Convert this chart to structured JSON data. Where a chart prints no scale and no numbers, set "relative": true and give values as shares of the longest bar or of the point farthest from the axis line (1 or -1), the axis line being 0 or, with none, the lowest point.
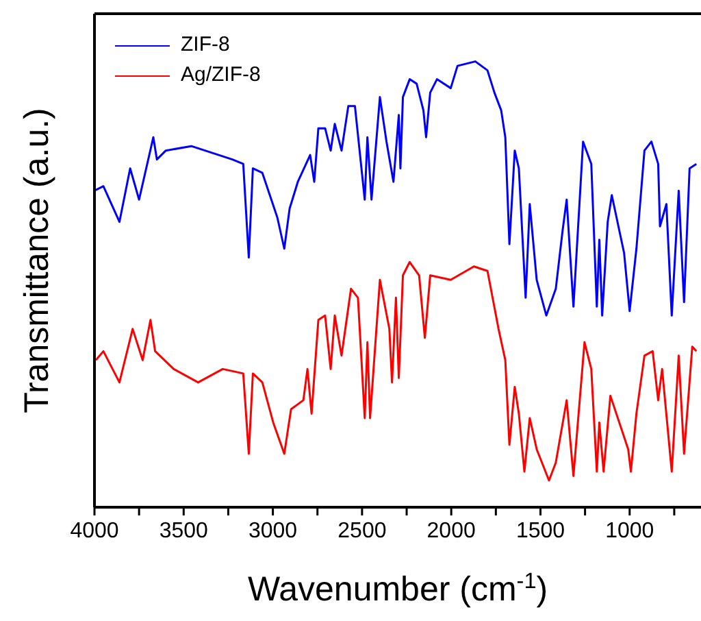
{
  "chart_data": {
    "type": "line",
    "xlabel": "Wavenumber (cm$^{-1}$)",
    "ylabel": "Transmittance (a.u.)",
    "relative": true,
    "xlim": [
      4000,
      600
    ],
    "xticks": [
      4000,
      {
        "value": 3750,
        "label": null
      },
      3500,
      {
        "value": 3250,
        "label": null
      },
      3000,
      {
        "value": 2750,
        "label": null
      },
      2500,
      {
        "value": 2250,
        "label": null
      },
      2000,
      {
        "value": 1750,
        "label": null
      },
      1500,
      {
        "value": 1250,
        "label": null
      },
      1000,
      {
        "value": 750,
        "label": null
      }
    ],
    "legend": "top left",
    "grid": false,
    "marker": "none",
    "line_style": "solid",
    "series": [
      {
        "name": "ZIF-8",
        "color": "#0000ff",
        "x": [
          4000,
          3950,
          3860,
          3800,
          3750,
          3670,
          3650,
          3600,
          3457,
          3227,
          3166,
          3135,
          3112,
          3059,
          2975,
          2936,
          2906,
          2860,
          2791,
          2768,
          2745,
          2707,
          2676,
          2653,
          2615,
          2577,
          2540,
          2485,
          2470,
          2447,
          2400,
          2363,
          2324,
          2294,
          2285,
          2271,
          2233,
          2194,
          2156,
          2141,
          2118,
          2080,
          2003,
          1965,
          1865,
          1797,
          1758,
          1720,
          1697,
          1674,
          1644,
          1621,
          1583,
          1560,
          1521,
          1467,
          1414,
          1376,
          1353,
          1315,
          1261,
          1215,
          1184,
          1170,
          1154,
          1123,
          1100,
          1031,
          1000,
          962,
          917,
          878,
          840,
          830,
          794,
          764,
          725,
          695,
          664,
          626
        ],
        "values": [
          0.71,
          0.72,
          0.64,
          0.76,
          0.69,
          0.83,
          0.78,
          0.8,
          0.81,
          0.78,
          0.77,
          0.56,
          0.76,
          0.75,
          0.65,
          0.58,
          0.67,
          0.73,
          0.79,
          0.73,
          0.85,
          0.85,
          0.8,
          0.86,
          0.8,
          0.9,
          0.9,
          0.69,
          0.83,
          0.69,
          0.92,
          0.82,
          0.73,
          0.88,
          0.76,
          0.92,
          0.96,
          0.95,
          0.89,
          0.83,
          0.93,
          0.96,
          0.94,
          0.99,
          1,
          0.98,
          0.93,
          0.89,
          0.83,
          0.59,
          0.8,
          0.76,
          0.47,
          0.68,
          0.51,
          0.43,
          0.49,
          0.62,
          0.69,
          0.45,
          0.82,
          0.77,
          0.45,
          0.6,
          0.43,
          0.64,
          0.7,
          0.57,
          0.44,
          0.58,
          0.8,
          0.82,
          0.77,
          0.63,
          0.68,
          0.43,
          0.71,
          0.46,
          0.76,
          0.77
        ]
      },
      {
        "name": "Ag/ZIF-8",
        "color": "#ff0000",
        "x": [
          3992,
          3950,
          3860,
          3786,
          3730,
          3686,
          3660,
          3556,
          3419,
          3281,
          3166,
          3135,
          3112,
          3059,
          2998,
          2936,
          2898,
          2829,
          2806,
          2783,
          2745,
          2707,
          2676,
          2653,
          2615,
          2562,
          2523,
          2485,
          2470,
          2455,
          2400,
          2347,
          2332,
          2310,
          2294,
          2271,
          2233,
          2180,
          2148,
          2118,
          2003,
          1873,
          1797,
          1735,
          1697,
          1674,
          1644,
          1621,
          1590,
          1560,
          1521,
          1452,
          1414,
          1353,
          1315,
          1253,
          1215,
          1184,
          1170,
          1146,
          1108,
          1008,
          993,
          962,
          917,
          871,
          840,
          818,
          764,
          725,
          695,
          649,
          626
        ],
        "values": [
          0.33,
          0.35,
          0.28,
          0.4,
          0.33,
          0.42,
          0.35,
          0.31,
          0.28,
          0.31,
          0.3,
          0.12,
          0.3,
          0.28,
          0.19,
          0.12,
          0.22,
          0.24,
          0.31,
          0.21,
          0.42,
          0.43,
          0.31,
          0.43,
          0.34,
          0.49,
          0.47,
          0.2,
          0.37,
          0.2,
          0.51,
          0.4,
          0.28,
          0.47,
          0.29,
          0.52,
          0.55,
          0.52,
          0.38,
          0.52,
          0.51,
          0.54,
          0.53,
          0.4,
          0.33,
          0.14,
          0.27,
          0.21,
          0.08,
          0.2,
          0.13,
          0.06,
          0.1,
          0.24,
          0.07,
          0.37,
          0.31,
          0.08,
          0.19,
          0.08,
          0.25,
          0.13,
          0.08,
          0.21,
          0.34,
          0.35,
          0.24,
          0.31,
          0.08,
          0.34,
          0.12,
          0.36,
          0.35
        ]
      }
    ]
  }
}
